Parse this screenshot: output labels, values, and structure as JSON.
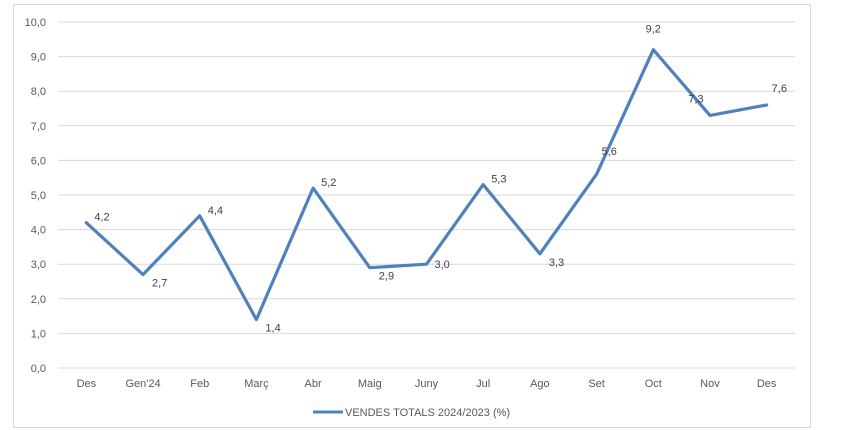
{
  "chart_data": {
    "type": "line",
    "categories": [
      "Des",
      "Gen'24",
      "Feb",
      "Març",
      "Abr",
      "Maig",
      "Juny",
      "Jul",
      "Ago",
      "Set",
      "Oct",
      "Nov",
      "Des"
    ],
    "series": [
      {
        "name": "VENDES TOTALS 2024/2023 (%)",
        "values": [
          4.2,
          2.7,
          4.4,
          1.4,
          5.2,
          2.9,
          3.0,
          5.3,
          3.3,
          5.6,
          9.2,
          7.3,
          7.6
        ],
        "labels": [
          "4,2",
          "2,7",
          "4,4",
          "1,4",
          "5,2",
          "2,9",
          "3,0",
          "5,3",
          "3,3",
          "5,6",
          "9,2",
          "7,3",
          "7,6"
        ],
        "color": "#4f81bd"
      }
    ],
    "y_ticks": [
      "0,0",
      "1,0",
      "2,0",
      "3,0",
      "4,0",
      "5,0",
      "6,0",
      "7,0",
      "8,0",
      "9,0",
      "10,0"
    ],
    "ylim": [
      0,
      10
    ],
    "grid": true,
    "legend_position": "bottom",
    "gridline_color": "#d9d9d9"
  }
}
